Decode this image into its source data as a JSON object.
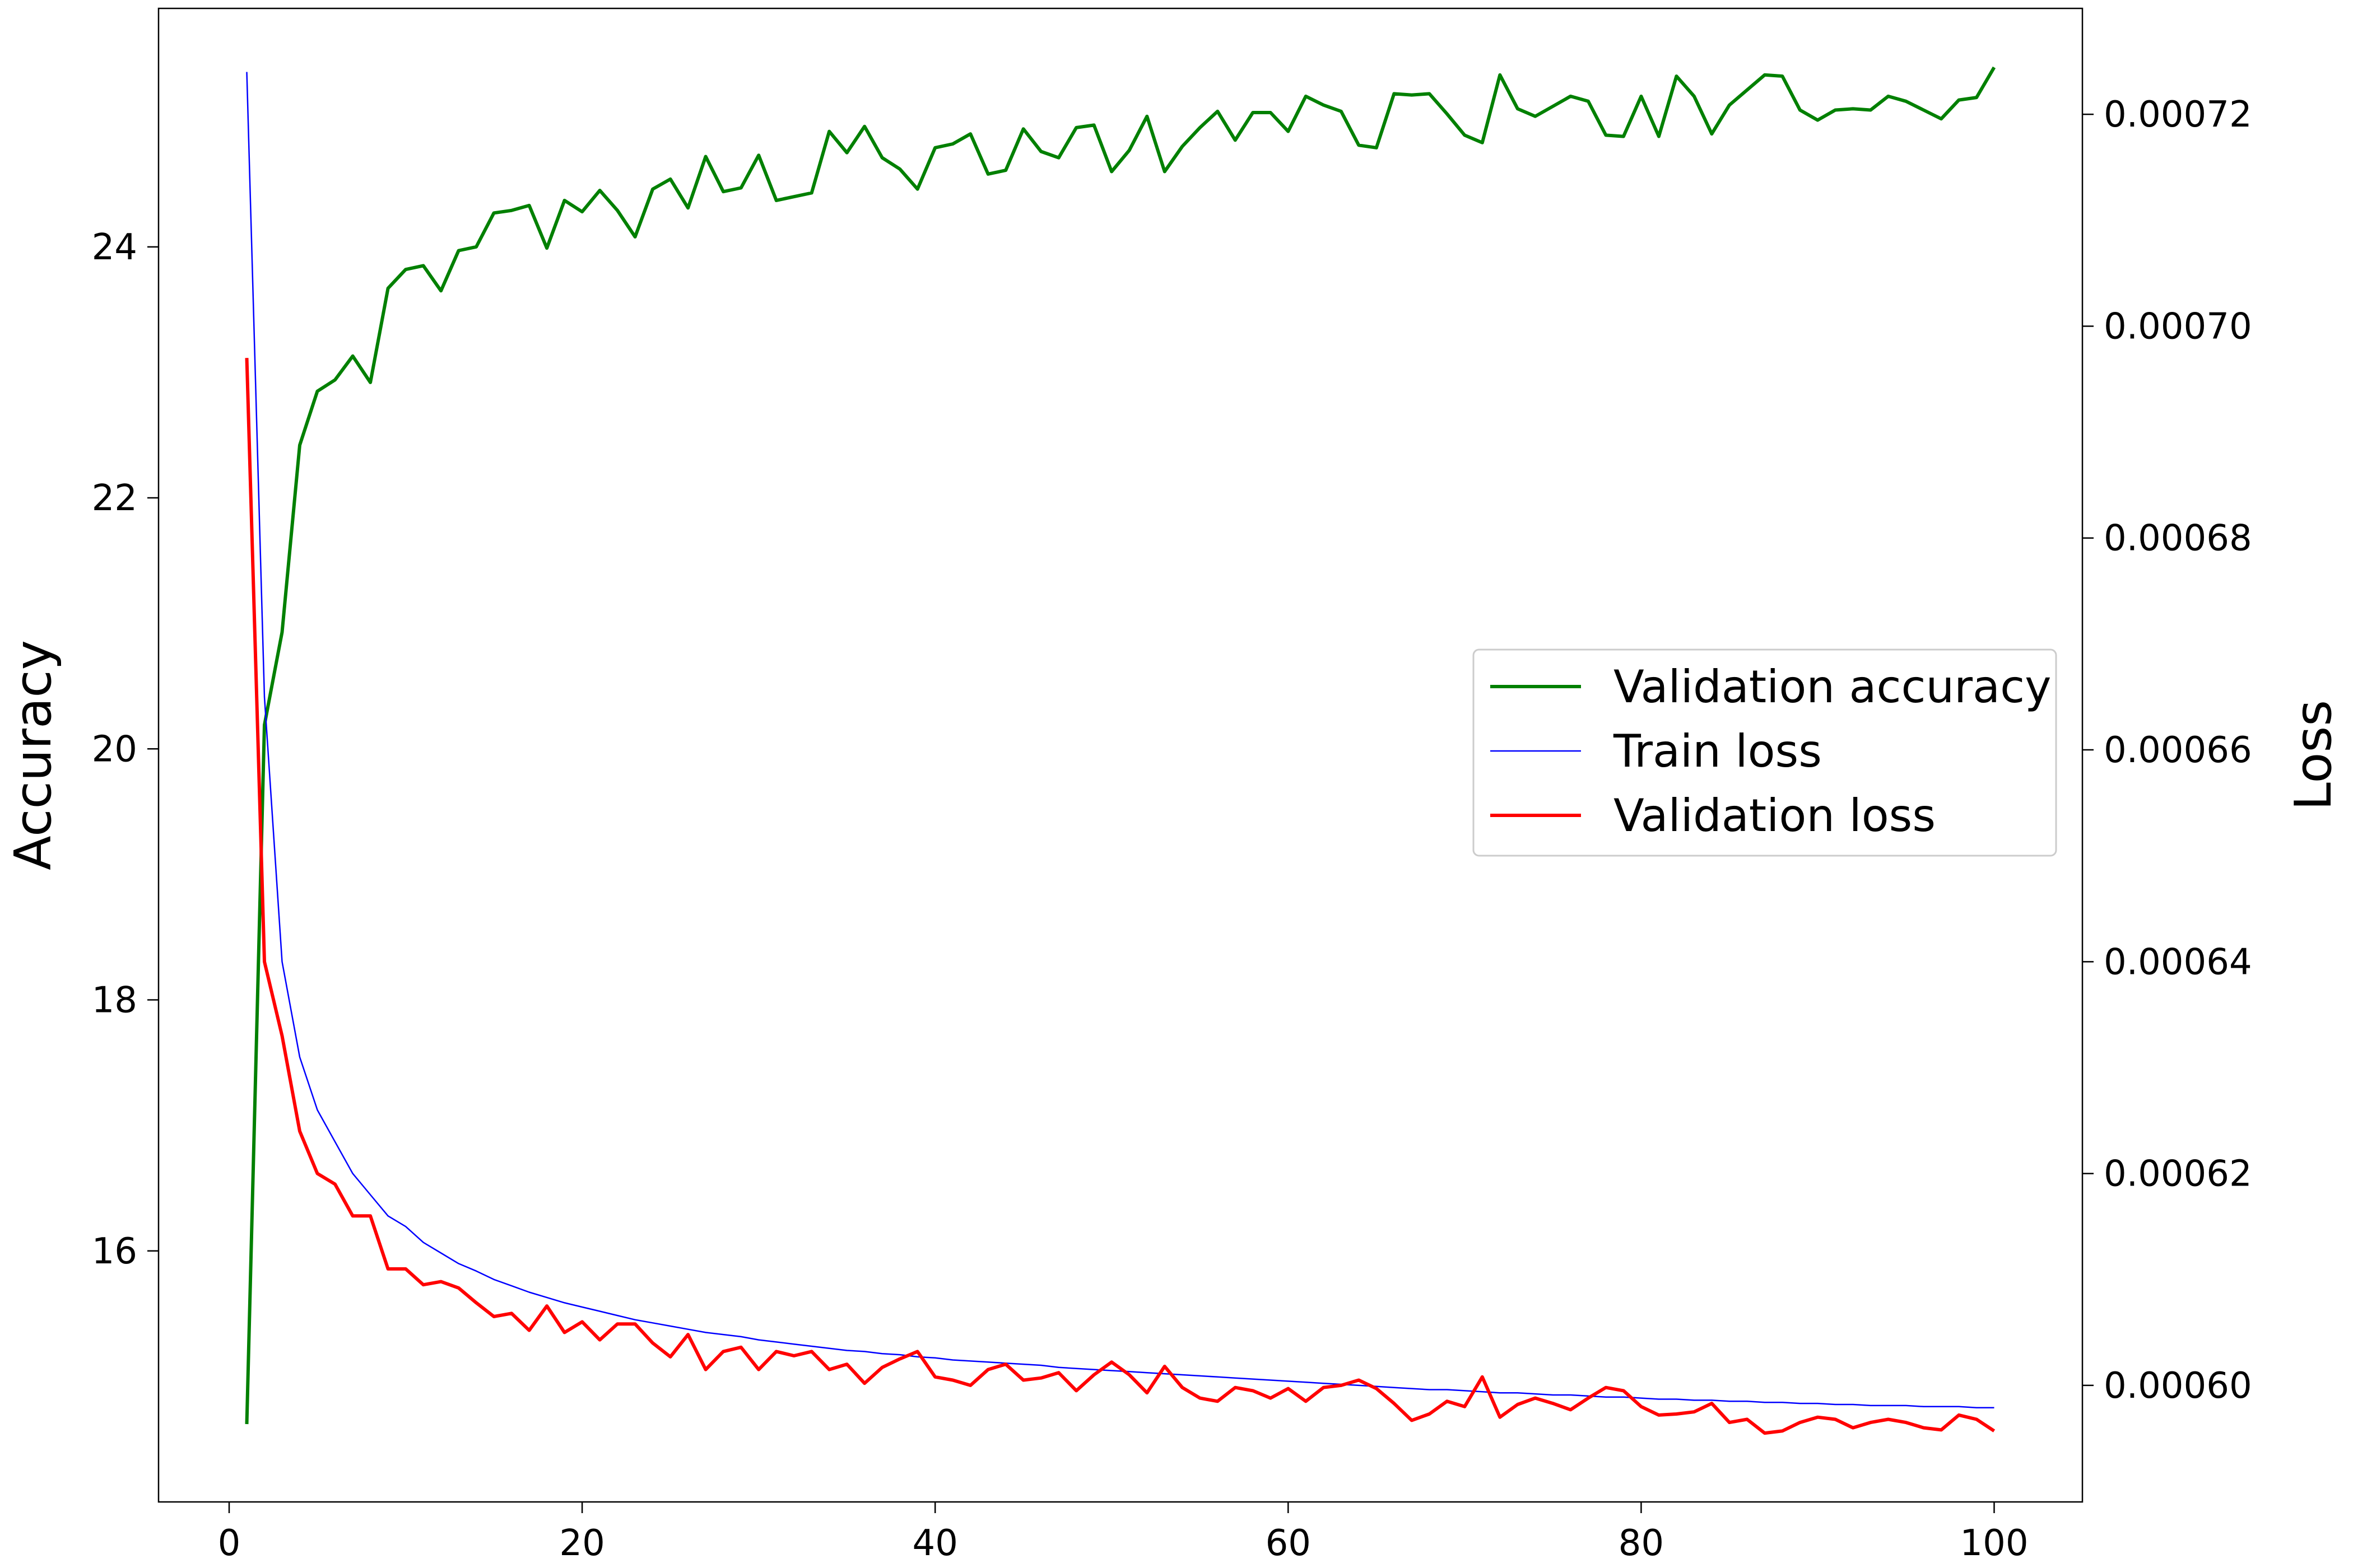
{
  "chart_data": {
    "type": "line",
    "title": "",
    "xlabel": "",
    "ylabel_left": "Accuracy",
    "ylabel_right": "Loss",
    "xlim": [
      -4,
      105
    ],
    "ylim_left": [
      14.0,
      25.9
    ],
    "ylim_right": [
      0.000589,
      0.00073
    ],
    "x_ticks": [
      0,
      20,
      40,
      60,
      80,
      100
    ],
    "y_left_ticks": [
      16,
      18,
      20,
      22,
      24
    ],
    "y_right_ticks": [
      "0.00060",
      "0.00062",
      "0.00064",
      "0.00066",
      "0.00068",
      "0.00070",
      "0.00072"
    ],
    "y_right_tick_values": [
      0.0006,
      0.00062,
      0.00064,
      0.00066,
      0.00068,
      0.0007,
      0.00072
    ],
    "grid": false,
    "legend": {
      "placement": "center-right"
    },
    "series": [
      {
        "name": "Validation accuracy",
        "axis": "left",
        "color": "#008000",
        "values": [
          14.62,
          20.19,
          20.93,
          22.42,
          22.85,
          22.94,
          23.13,
          22.92,
          23.67,
          23.82,
          23.85,
          23.65,
          23.97,
          24.0,
          24.27,
          24.29,
          24.33,
          23.99,
          24.37,
          24.28,
          24.45,
          24.29,
          24.08,
          24.46,
          24.54,
          24.31,
          24.72,
          24.44,
          24.47,
          24.73,
          24.37,
          24.4,
          24.43,
          24.92,
          24.75,
          24.96,
          24.71,
          24.62,
          24.46,
          24.79,
          24.82,
          24.9,
          24.58,
          24.61,
          24.94,
          24.76,
          24.71,
          24.95,
          24.97,
          24.6,
          24.77,
          25.04,
          24.6,
          24.8,
          24.95,
          25.08,
          24.85,
          25.07,
          25.07,
          24.92,
          25.2,
          25.13,
          25.08,
          24.81,
          24.79,
          25.22,
          25.21,
          25.22,
          25.06,
          24.89,
          24.83,
          25.37,
          25.1,
          25.04,
          25.12,
          25.2,
          25.16,
          24.89,
          24.88,
          25.2,
          24.88,
          25.36,
          25.2,
          24.9,
          25.13,
          25.25,
          25.37,
          25.36,
          25.09,
          25.01,
          25.09,
          25.1,
          25.09,
          25.2,
          25.16,
          25.09,
          25.02,
          25.17,
          25.19,
          25.43
        ]
      },
      {
        "name": "Train loss",
        "axis": "right",
        "color": "#0000ff",
        "values": [
          0.000724,
          0.000665,
          0.00064,
          0.000631,
          0.000626,
          0.000623,
          0.00062,
          0.000618,
          0.000616,
          0.000615,
          0.0006135,
          0.0006125,
          0.0006115,
          0.0006108,
          0.00061,
          0.0006094,
          0.0006088,
          0.0006083,
          0.0006078,
          0.0006074,
          0.000607,
          0.0006066,
          0.0006062,
          0.0006059,
          0.0006056,
          0.0006053,
          0.000605,
          0.0006048,
          0.0006046,
          0.0006043,
          0.0006041,
          0.0006039,
          0.0006037,
          0.0006035,
          0.0006033,
          0.0006032,
          0.000603,
          0.0006029,
          0.0006027,
          0.0006026,
          0.0006024,
          0.0006023,
          0.0006022,
          0.0006021,
          0.000602,
          0.0006019,
          0.0006017,
          0.0006016,
          0.0006015,
          0.0006014,
          0.0006013,
          0.0006012,
          0.0006011,
          0.000601,
          0.0006009,
          0.0006008,
          0.0006007,
          0.0006006,
          0.0006005,
          0.0006004,
          0.0006003,
          0.0006002,
          0.0006001,
          0.0006,
          0.0005999,
          0.0005998,
          0.0005997,
          0.0005996,
          0.0005996,
          0.0005995,
          0.0005994,
          0.0005993,
          0.0005993,
          0.0005992,
          0.0005991,
          0.0005991,
          0.000599,
          0.0005989,
          0.0005989,
          0.0005988,
          0.0005987,
          0.0005987,
          0.0005986,
          0.0005986,
          0.0005985,
          0.0005985,
          0.0005984,
          0.0005984,
          0.0005983,
          0.0005983,
          0.0005982,
          0.0005982,
          0.0005981,
          0.0005981,
          0.0005981,
          0.000598,
          0.000598,
          0.000598,
          0.0005979,
          0.0005979
        ]
      },
      {
        "name": "Validation loss",
        "axis": "right",
        "color": "#ff0000",
        "values": [
          0.000697,
          0.00064,
          0.000633,
          0.000624,
          0.00062,
          0.000619,
          0.000616,
          0.000616,
          0.000611,
          0.000611,
          0.0006095,
          0.0006098,
          0.0006092,
          0.0006078,
          0.0006065,
          0.0006068,
          0.0006052,
          0.0006075,
          0.000605,
          0.000606,
          0.0006043,
          0.0006058,
          0.0006058,
          0.000604,
          0.0006027,
          0.0006048,
          0.0006015,
          0.0006032,
          0.0006036,
          0.0006015,
          0.0006032,
          0.0006028,
          0.0006032,
          0.0006015,
          0.000602,
          0.0006002,
          0.0006017,
          0.0006025,
          0.0006032,
          0.0006008,
          0.0006005,
          0.0006,
          0.0006015,
          0.000602,
          0.0006005,
          0.0006007,
          0.0006012,
          0.0005995,
          0.000601,
          0.0006022,
          0.000601,
          0.0005993,
          0.0006018,
          0.0005998,
          0.0005988,
          0.0005985,
          0.0005998,
          0.0005995,
          0.0005988,
          0.0005997,
          0.0005985,
          0.0005998,
          0.0006,
          0.0006005,
          0.0005997,
          0.0005983,
          0.0005967,
          0.0005973,
          0.0005985,
          0.000598,
          0.0006008,
          0.000597,
          0.0005982,
          0.0005988,
          0.0005983,
          0.0005977,
          0.0005988,
          0.0005998,
          0.0005995,
          0.000598,
          0.0005972,
          0.0005973,
          0.0005975,
          0.0005983,
          0.0005965,
          0.0005968,
          0.0005955,
          0.0005957,
          0.0005965,
          0.000597,
          0.0005968,
          0.000596,
          0.0005965,
          0.0005968,
          0.0005965,
          0.000596,
          0.0005958,
          0.0005972,
          0.0005968,
          0.0005957
        ]
      }
    ]
  }
}
